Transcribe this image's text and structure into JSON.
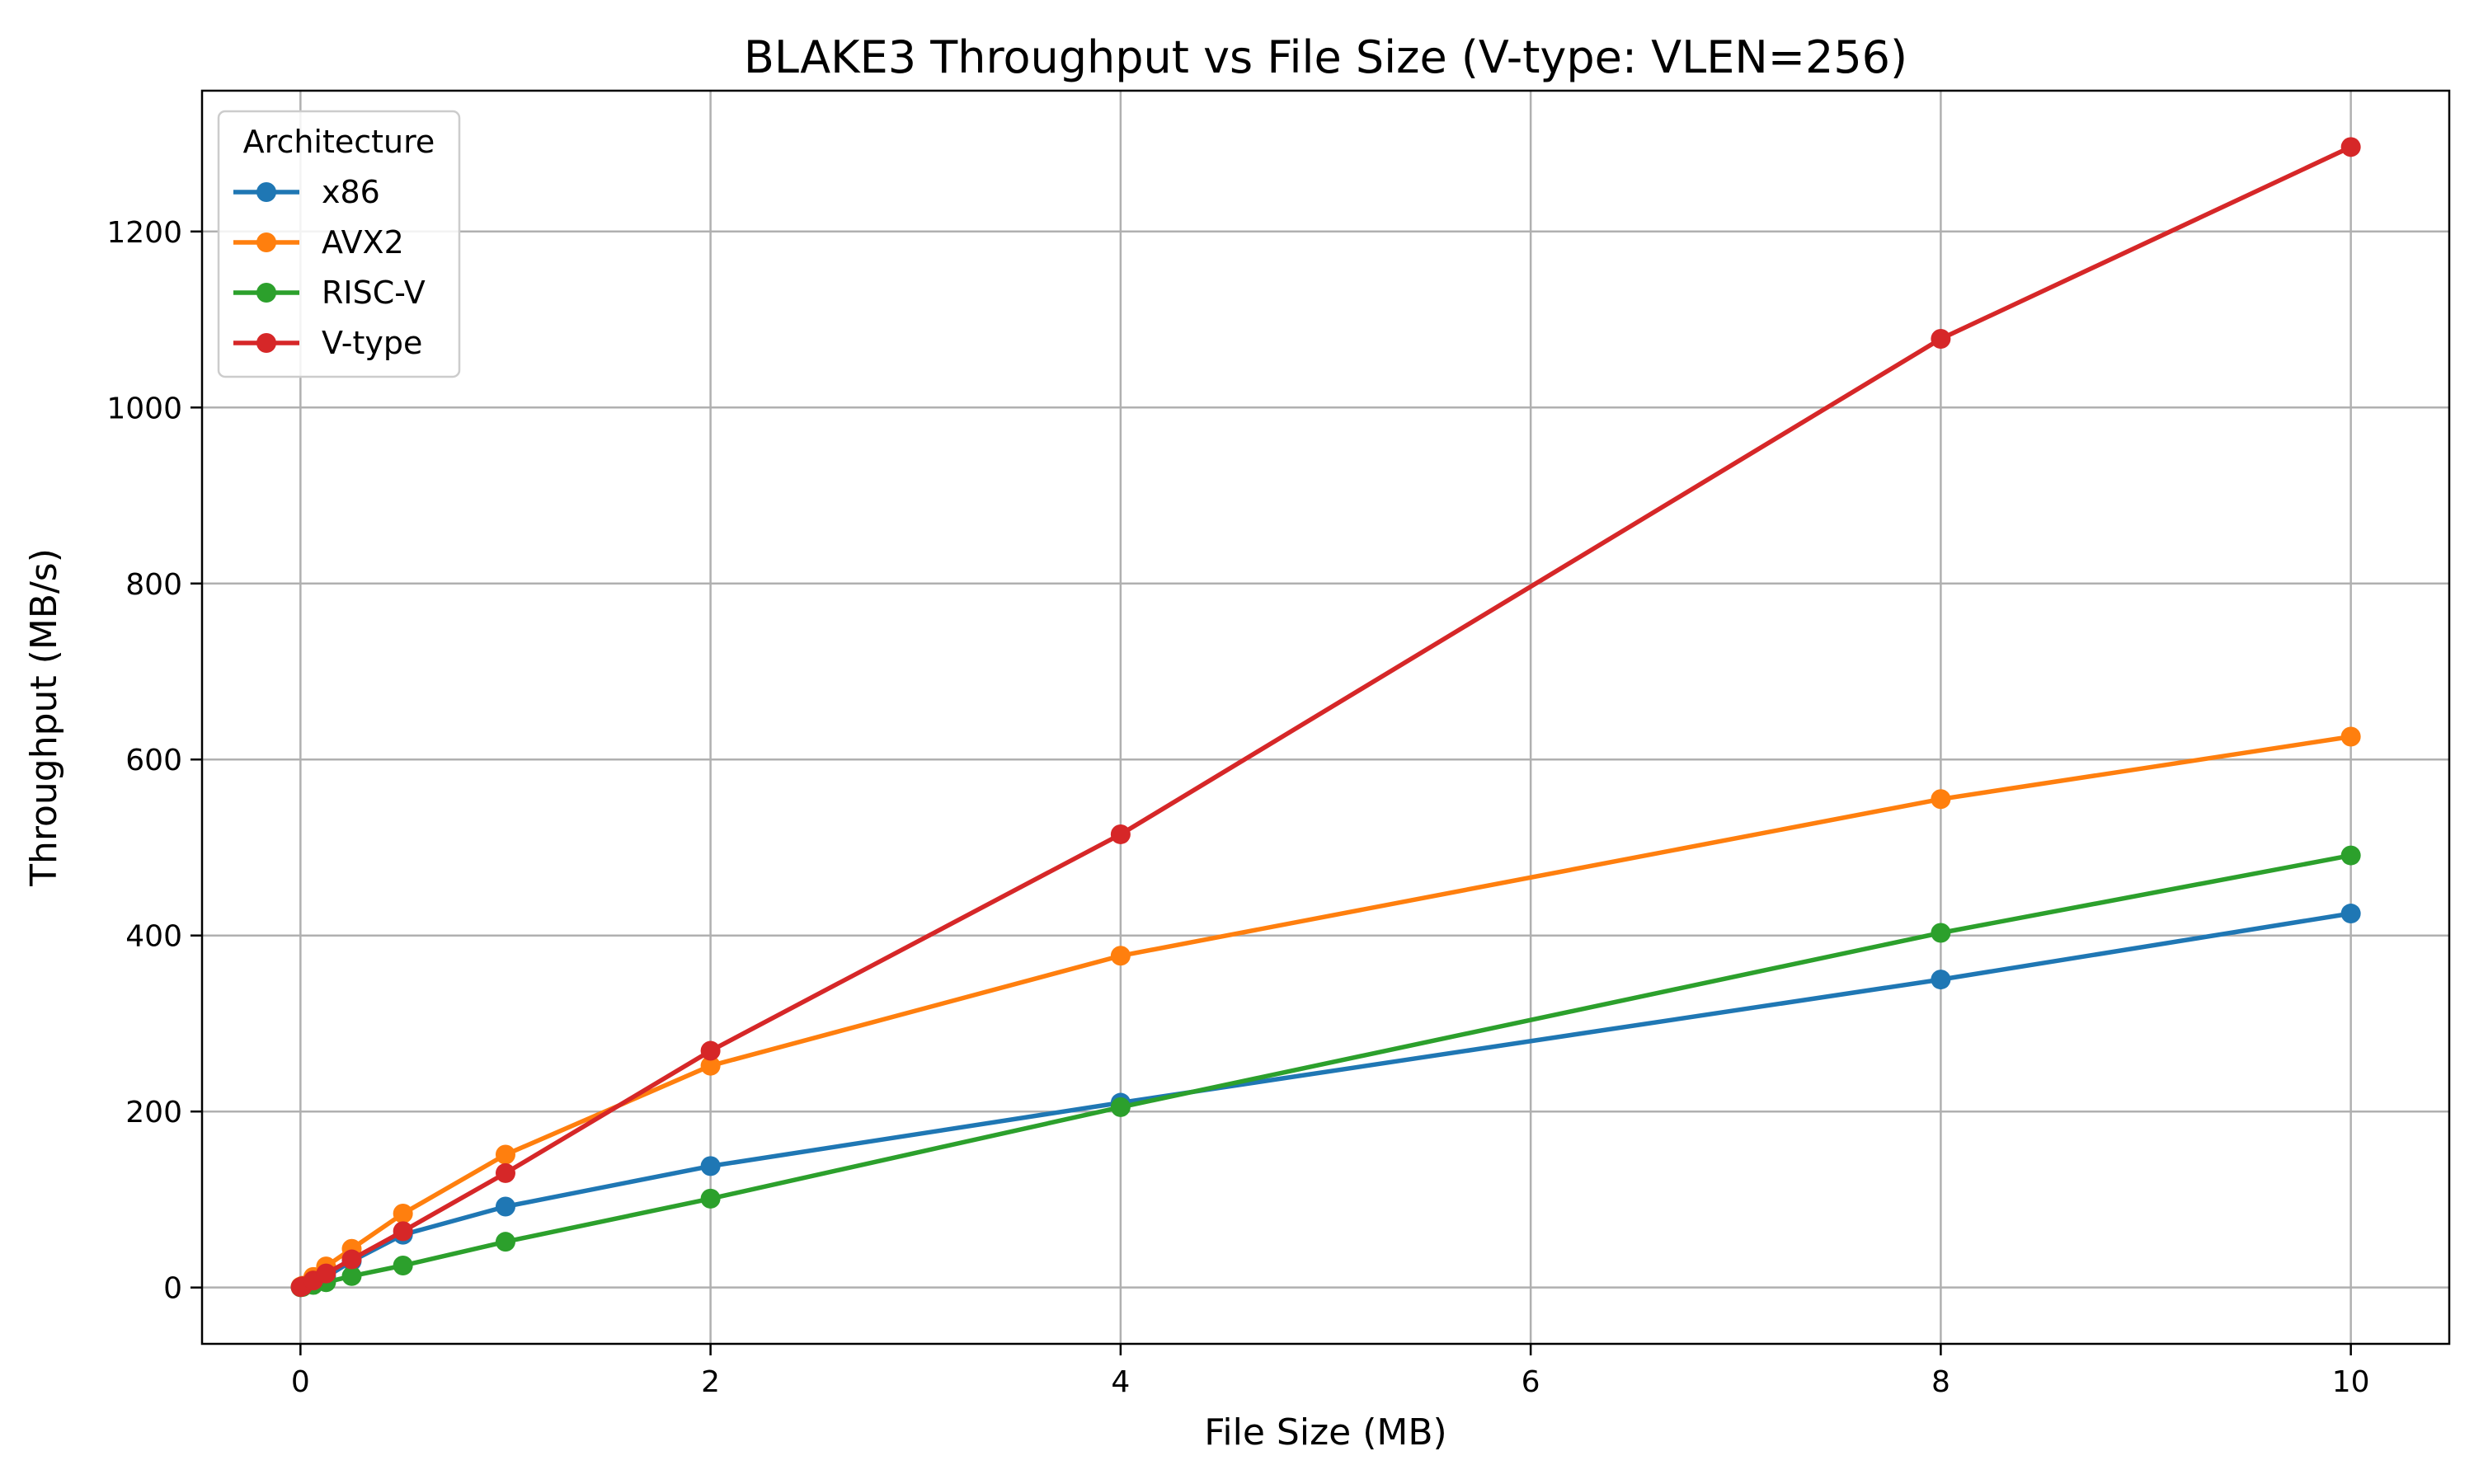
{
  "chart_data": {
    "type": "line",
    "title": "BLAKE3 Throughput vs File Size (V-type: VLEN=256)",
    "xlabel": "File Size (MB)",
    "ylabel": "Throughput (MB/s)",
    "xlim": [
      -0.48,
      10.48
    ],
    "ylim": [
      -64,
      1360
    ],
    "xticks": [
      0,
      2,
      4,
      6,
      8,
      10
    ],
    "yticks": [
      0,
      200,
      400,
      600,
      800,
      1000,
      1200
    ],
    "grid": true,
    "legend": {
      "title": "Architecture",
      "placement": "top-left"
    },
    "series": [
      {
        "name": "x86",
        "color": "#1f77b4",
        "x": [
          0.001,
          0.01,
          0.0625,
          0.125,
          0.25,
          0.5,
          1,
          2,
          4,
          8,
          10
        ],
        "y": [
          0.5,
          1,
          6,
          12,
          30,
          60,
          92,
          138,
          210,
          350,
          425
        ]
      },
      {
        "name": "AVX2",
        "color": "#ff7f0e",
        "x": [
          0.001,
          0.01,
          0.0625,
          0.125,
          0.25,
          0.5,
          1,
          2,
          4,
          8,
          10
        ],
        "y": [
          1,
          2,
          12,
          24,
          44,
          84,
          151,
          252,
          377,
          555,
          626
        ]
      },
      {
        "name": "RISC-V",
        "color": "#2ca02c",
        "x": [
          0.001,
          0.01,
          0.0625,
          0.125,
          0.25,
          0.5,
          1,
          2,
          4,
          8,
          10
        ],
        "y": [
          0.3,
          0.6,
          3,
          6,
          13,
          25,
          52,
          101,
          205,
          403,
          491
        ]
      },
      {
        "name": "V-type",
        "color": "#d62728",
        "x": [
          0.001,
          0.01,
          0.0625,
          0.125,
          0.25,
          0.5,
          1,
          2,
          4,
          8,
          10
        ],
        "y": [
          0.5,
          1.5,
          8,
          16,
          32,
          64,
          130,
          269,
          515,
          1078,
          1296
        ]
      }
    ]
  }
}
